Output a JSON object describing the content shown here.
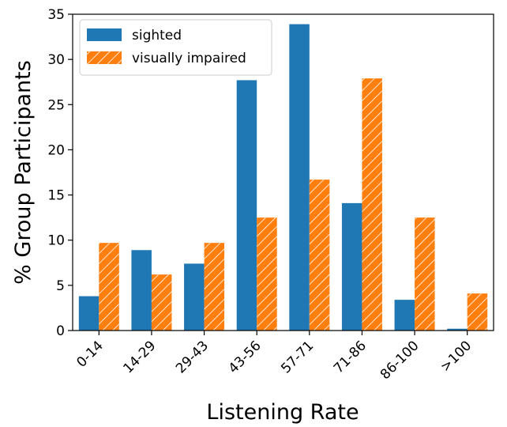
{
  "chart_data": {
    "type": "bar",
    "categories": [
      "0-14",
      "14-29",
      "29-43",
      "43-56",
      "57-71",
      "71-86",
      "86-100",
      ">100"
    ],
    "series": [
      {
        "name": "sighted",
        "values": [
          3.8,
          8.9,
          7.4,
          27.7,
          33.9,
          14.1,
          3.4,
          0.2
        ],
        "color": "#1f77b4",
        "hatch": false
      },
      {
        "name": "visually impaired",
        "values": [
          9.7,
          6.2,
          9.7,
          12.5,
          16.7,
          27.9,
          12.5,
          4.1
        ],
        "color": "#ff7f0e",
        "hatch": true
      }
    ],
    "xlabel": "Listening Rate",
    "ylabel": "% Group Participants",
    "ylim": [
      0,
      35
    ],
    "yticks": [
      0,
      5,
      10,
      15,
      20,
      25,
      30,
      35
    ],
    "grid": false,
    "legend_position": "top-left"
  }
}
